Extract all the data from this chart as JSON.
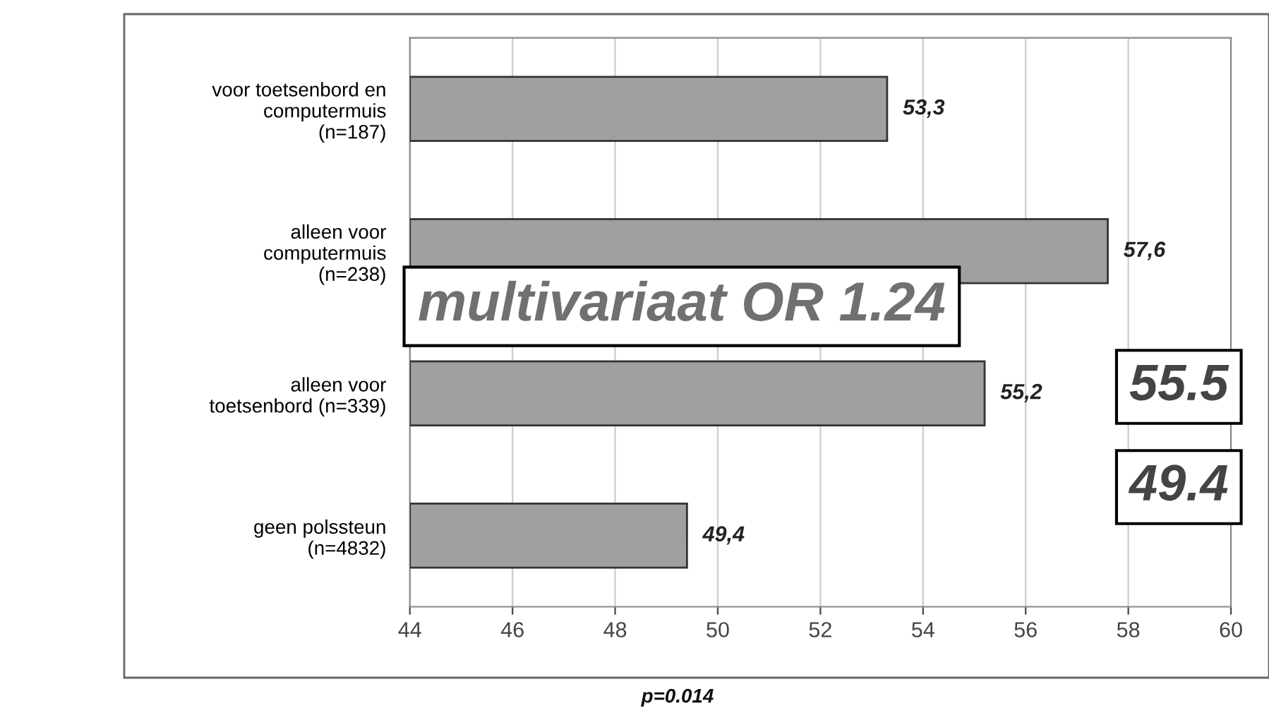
{
  "chart_data": {
    "type": "bar",
    "orientation": "horizontal",
    "categories": [
      "voor toetsenbord en\ncomputermuis\n(n=187)",
      "alleen voor\ncomputermuis\n(n=238)",
      "alleen voor\ntoetsenbord (n=339)",
      "geen polssteun\n(n=4832)"
    ],
    "values": [
      53.3,
      57.6,
      55.2,
      49.4
    ],
    "value_labels": [
      "53,3",
      "57,6",
      "55,2",
      "49,4"
    ],
    "color": "#a0a0a0",
    "xlim": [
      44,
      60
    ],
    "xticks": [
      44,
      46,
      48,
      50,
      52,
      54,
      56,
      58,
      60
    ],
    "grid": "x",
    "annotations": [
      "multivariaat OR 1.24",
      "55.5",
      "49.4",
      "p=0.014"
    ]
  }
}
